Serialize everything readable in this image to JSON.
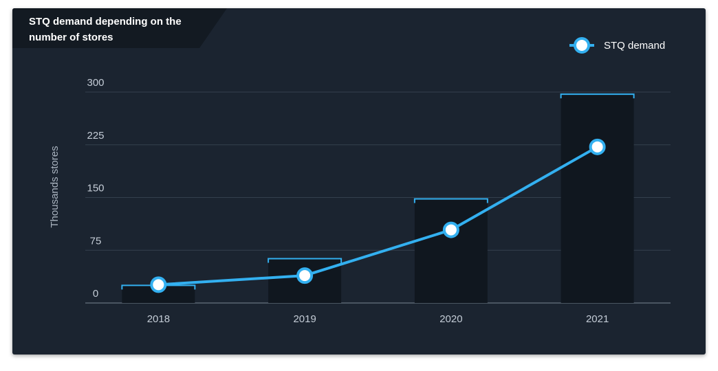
{
  "chart_data": {
    "type": "bar+line",
    "title": "STQ demand depending on the number of stores",
    "ylabel": "Thousands stores",
    "xlabel": "",
    "categories": [
      "2018",
      "2019",
      "2020",
      "2021"
    ],
    "ylim": [
      0,
      300
    ],
    "yticks": [
      0,
      75,
      150,
      225,
      300
    ],
    "bars": {
      "values": [
        25,
        63,
        148,
        297
      ],
      "color": "#10171f",
      "cap_color": "#33b0f0"
    },
    "series": [
      {
        "name": "STQ demand",
        "type": "line",
        "values": [
          26,
          39,
          104,
          222
        ],
        "color": "#33b0f0"
      }
    ],
    "legend_position": "top-right",
    "grid": true
  },
  "colors": {
    "card_background": "#1b2430",
    "title_tab": "#131a22",
    "accent": "#33b0f0"
  }
}
